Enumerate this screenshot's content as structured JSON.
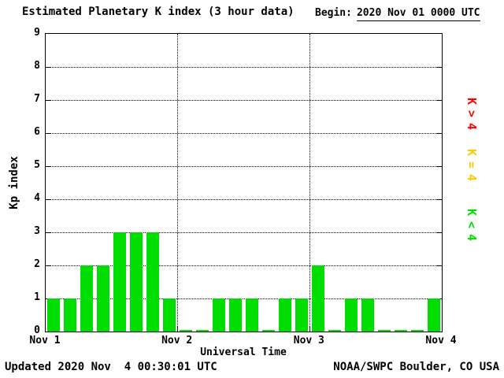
{
  "title": "Estimated Planetary K index (3 hour data)",
  "begin_label": "Begin:",
  "begin_value": "2020 Nov 01 0000 UTC",
  "footer": {
    "updated": "Updated 2020 Nov  4 00:30:01 UTC",
    "source": "NOAA/SWPC Boulder, CO USA"
  },
  "chart_data": {
    "type": "bar",
    "title": "Estimated Planetary K index (3 hour data)",
    "begin": "2020 Nov 01 0000 UTC",
    "xlabel": "Universal Time",
    "ylabel": "Kp index",
    "ylim": [
      0,
      9
    ],
    "yticks": [
      0,
      1,
      2,
      3,
      4,
      5,
      6,
      7,
      8,
      9
    ],
    "x_day_labels": [
      "Nov 1",
      "Nov 2",
      "Nov 3",
      "Nov 4"
    ],
    "bins_per_day": 8,
    "bin_hours": 3,
    "values": [
      1,
      1,
      2,
      2,
      3,
      3,
      3,
      1,
      0,
      0,
      1,
      1,
      1,
      0,
      1,
      1,
      2,
      0,
      1,
      1,
      0,
      0,
      0,
      1
    ],
    "bar_color_rules": {
      "below4": "#00dd00",
      "equal4": "#ffc800",
      "above4": "#ff0000"
    },
    "legend": [
      {
        "label": "K>4",
        "color": "#ff0000"
      },
      {
        "label": "K=4",
        "color": "#ffc800"
      },
      {
        "label": "K<4",
        "color": "#00dd00"
      }
    ],
    "grid": {
      "horizontal": "dotted line at each integer Kp value",
      "vertical": "dotted line at each day boundary",
      "legend_position": "right side, rotated"
    }
  }
}
